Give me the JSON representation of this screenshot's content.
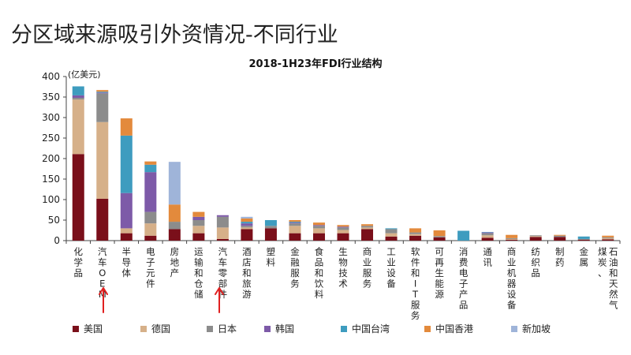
{
  "slide": {
    "title": "分区域来源吸引外资情况-不同行业"
  },
  "chart_data": {
    "type": "bar",
    "stacked": true,
    "title": "2018-1H23年FDI行业结构",
    "ylabel": "(亿美元)",
    "ylim": [
      0,
      400
    ],
    "yticks": [
      0,
      50,
      100,
      150,
      200,
      250,
      300,
      350,
      400
    ],
    "grid": false,
    "legend_position": "bottom",
    "categories": [
      "化学品",
      "汽车OEM",
      "半导体",
      "电子元件",
      "房地产",
      "运输和仓储",
      "汽车零部件",
      "酒店和旅游",
      "塑料",
      "金融服务",
      "食品和饮料",
      "生物技术",
      "商业服务",
      "工业设备",
      "软件和IT服务",
      "可再生能源",
      "消费电子产品",
      "通讯",
      "商业机器设备",
      "纺织品",
      "制药",
      "金属",
      "煤炭、石油和天然气"
    ],
    "series": [
      {
        "name": "美国",
        "color": "#7a0f1a",
        "values": [
          211,
          102,
          18,
          12,
          28,
          18,
          4,
          28,
          30,
          18,
          18,
          18,
          28,
          10,
          12,
          8,
          0,
          7,
          2,
          9,
          9,
          2,
          3
        ]
      },
      {
        "name": "德国",
        "color": "#d6b089",
        "values": [
          133,
          187,
          12,
          30,
          0,
          18,
          28,
          4,
          0,
          18,
          12,
          8,
          4,
          8,
          4,
          0,
          0,
          6,
          2,
          2,
          0,
          0,
          3
        ]
      },
      {
        "name": "日本",
        "color": "#8c8c8c",
        "values": [
          4,
          70,
          0,
          28,
          18,
          14,
          26,
          4,
          6,
          6,
          6,
          6,
          4,
          10,
          4,
          3,
          0,
          5,
          2,
          2,
          3,
          2,
          2
        ]
      },
      {
        "name": "韩国",
        "color": "#7d5aa8",
        "values": [
          6,
          2,
          86,
          97,
          0,
          8,
          4,
          6,
          0,
          2,
          2,
          2,
          0,
          0,
          0,
          0,
          0,
          2,
          0,
          0,
          0,
          0,
          0
        ]
      },
      {
        "name": "中国台湾",
        "color": "#3e9cbf",
        "values": [
          22,
          2,
          140,
          18,
          0,
          0,
          0,
          4,
          14,
          2,
          0,
          0,
          0,
          2,
          0,
          0,
          24,
          1,
          0,
          0,
          0,
          6,
          0
        ]
      },
      {
        "name": "中国香港",
        "color": "#e38a3c",
        "values": [
          0,
          4,
          42,
          8,
          42,
          12,
          0,
          8,
          0,
          4,
          6,
          4,
          4,
          0,
          10,
          14,
          0,
          0,
          8,
          0,
          2,
          0,
          4
        ]
      },
      {
        "name": "新加坡",
        "color": "#9fb4d9",
        "values": [
          0,
          0,
          0,
          0,
          104,
          0,
          0,
          4,
          0,
          0,
          0,
          0,
          0,
          0,
          0,
          0,
          0,
          0,
          0,
          0,
          0,
          0,
          0
        ]
      }
    ]
  },
  "annotations": [
    {
      "type": "arrow-up",
      "color": "#e02020",
      "target_category": "汽车OEM"
    },
    {
      "type": "arrow-up",
      "color": "#e02020",
      "target_category": "汽车零部件"
    }
  ]
}
